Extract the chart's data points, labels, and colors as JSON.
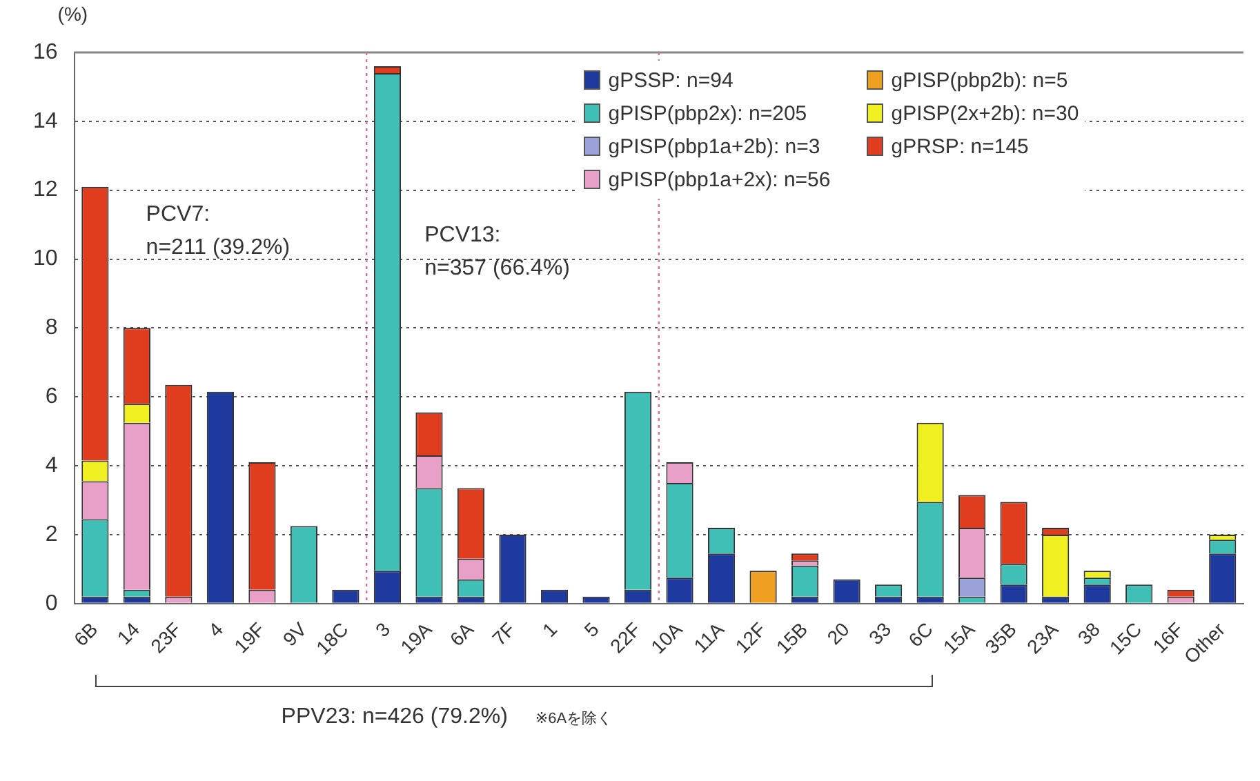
{
  "chart_data": {
    "type": "bar",
    "stacked": true,
    "ylabel": "(%)",
    "categories": [
      "6B",
      "14",
      "23F",
      "4",
      "19F",
      "9V",
      "18C",
      "3",
      "19A",
      "6A",
      "7F",
      "1",
      "5",
      "22F",
      "10A",
      "11A",
      "12F",
      "15B",
      "20",
      "33",
      "6C",
      "15A",
      "35B",
      "23A",
      "38",
      "15C",
      "16F",
      "Other"
    ],
    "series": [
      {
        "name": "gPSSP: n=94",
        "color": "#1f3a9e",
        "values": [
          0.2,
          0.2,
          null,
          6.15,
          null,
          null,
          0.4,
          0.95,
          0.2,
          0.2,
          2.0,
          0.4,
          0.2,
          0.4,
          0.75,
          1.45,
          null,
          0.2,
          0.7,
          0.2,
          0.2,
          null,
          0.55,
          0.2,
          0.55,
          null,
          null,
          1.45
        ]
      },
      {
        "name": "gPISP(pbp2x): n=205",
        "color": "#3fbfb5",
        "values": [
          2.25,
          0.2,
          null,
          null,
          null,
          2.25,
          null,
          14.45,
          3.15,
          0.5,
          null,
          null,
          null,
          5.75,
          2.75,
          0.75,
          null,
          0.9,
          null,
          0.35,
          2.75,
          0.2,
          0.6,
          null,
          0.2,
          0.55,
          null,
          0.4
        ]
      },
      {
        "name": "gPISP(pbp1a+2b): n=3",
        "color": "#9aa0d8",
        "values": [
          null,
          null,
          null,
          null,
          null,
          null,
          null,
          null,
          null,
          null,
          null,
          null,
          null,
          null,
          null,
          null,
          null,
          null,
          null,
          null,
          null,
          0.55,
          null,
          null,
          null,
          null,
          null,
          null
        ]
      },
      {
        "name": "gPISP(pbp1a+2x): n=56",
        "color": "#e8a0c8",
        "values": [
          1.1,
          4.85,
          0.2,
          null,
          0.4,
          null,
          null,
          null,
          0.95,
          0.6,
          null,
          null,
          null,
          null,
          0.6,
          null,
          null,
          0.15,
          null,
          null,
          null,
          1.45,
          null,
          null,
          null,
          null,
          0.2,
          null
        ]
      },
      {
        "name": "gPISP(pbp2b): n=5",
        "color": "#f0a020",
        "values": [
          null,
          null,
          null,
          null,
          null,
          null,
          null,
          null,
          null,
          null,
          null,
          null,
          null,
          null,
          null,
          null,
          0.95,
          null,
          null,
          null,
          null,
          null,
          null,
          null,
          null,
          null,
          null,
          null
        ]
      },
      {
        "name": "gPISP(2x+2b): n=30",
        "color": "#f0f020",
        "values": [
          0.6,
          0.55,
          null,
          null,
          null,
          null,
          null,
          null,
          null,
          null,
          null,
          null,
          null,
          null,
          null,
          null,
          null,
          null,
          null,
          null,
          2.3,
          null,
          null,
          1.8,
          0.2,
          null,
          null,
          0.15
        ]
      },
      {
        "name": "gPRSP: n=145",
        "color": "#e03c1e",
        "values": [
          7.95,
          2.2,
          6.15,
          null,
          3.7,
          null,
          null,
          0.2,
          1.25,
          2.05,
          null,
          null,
          null,
          null,
          null,
          null,
          null,
          0.2,
          null,
          null,
          null,
          0.95,
          1.8,
          0.2,
          null,
          null,
          0.2,
          null
        ]
      }
    ],
    "ylim": [
      0,
      16
    ],
    "yticks": [
      0,
      2,
      4,
      6,
      8,
      10,
      12,
      14,
      16
    ],
    "grid": "y",
    "legend": "top right",
    "annotations": [
      "PCV7:\nn=211 (39.2%)",
      "PCV13:\nn=357 (66.4%)",
      "PPV23: n=426 (79.2%)",
      "※6Aを除く"
    ]
  }
}
